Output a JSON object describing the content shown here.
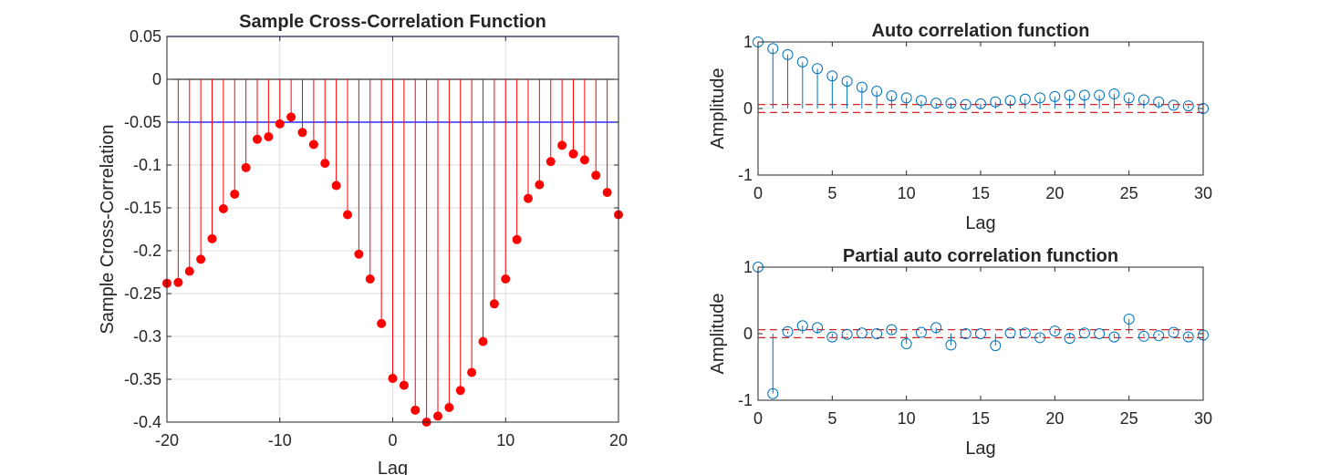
{
  "colors": {
    "ccf_stem": "#ff0000",
    "ccf_bound": "#0000ff",
    "acf_stem": "#0072bd",
    "bound_dash": "#d62728",
    "grid": "#dddddd",
    "axes": "#262626"
  },
  "charts": {
    "ccf": {
      "title": "Sample Cross-Correlation Function",
      "xlabel": "Lag",
      "ylabel": "Sample Cross-Correlation",
      "xticks": [
        "-20",
        "-10",
        "0",
        "10",
        "20"
      ],
      "yticks": [
        "0.05",
        "0",
        "-0.05",
        "-0.1",
        "-0.15",
        "-0.2",
        "-0.25",
        "-0.3",
        "-0.35",
        "-0.4"
      ]
    },
    "acf": {
      "title": "Auto correlation function",
      "xlabel": "Lag",
      "ylabel": "Amplitude",
      "xticks": [
        "0",
        "5",
        "10",
        "15",
        "20",
        "25",
        "30"
      ],
      "yticks": [
        "1",
        "0",
        "-1"
      ]
    },
    "pacf": {
      "title": "Partial auto correlation function",
      "xlabel": "Lag",
      "ylabel": "Amplitude",
      "xticks": [
        "0",
        "5",
        "10",
        "15",
        "20",
        "25",
        "30"
      ],
      "yticks": [
        "1",
        "0",
        "-1"
      ]
    }
  },
  "chart_data": [
    {
      "type": "stem",
      "title": "Sample Cross-Correlation Function",
      "xlabel": "Lag",
      "ylabel": "Sample Cross-Correlation",
      "xlim": [
        -20,
        20
      ],
      "ylim": [
        -0.4,
        0.05
      ],
      "grid": true,
      "marker": "filled-circle",
      "confidence_bounds": [
        0.05,
        -0.05
      ],
      "x": [
        -20,
        -19,
        -18,
        -17,
        -16,
        -15,
        -14,
        -13,
        -12,
        -11,
        -10,
        -9,
        -8,
        -7,
        -6,
        -5,
        -4,
        -3,
        -2,
        -1,
        0,
        1,
        2,
        3,
        4,
        5,
        6,
        7,
        8,
        9,
        10,
        11,
        12,
        13,
        14,
        15,
        16,
        17,
        18,
        19,
        20
      ],
      "values": [
        -0.238,
        -0.237,
        -0.224,
        -0.21,
        -0.186,
        -0.151,
        -0.134,
        -0.103,
        -0.07,
        -0.067,
        -0.052,
        -0.044,
        -0.062,
        -0.076,
        -0.098,
        -0.124,
        -0.158,
        -0.204,
        -0.233,
        -0.285,
        -0.349,
        -0.357,
        -0.386,
        -0.4,
        -0.393,
        -0.383,
        -0.363,
        -0.342,
        -0.306,
        -0.262,
        -0.233,
        -0.187,
        -0.139,
        -0.123,
        -0.096,
        -0.077,
        -0.087,
        -0.094,
        -0.112,
        -0.132,
        -0.158
      ]
    },
    {
      "type": "stem",
      "title": "Auto correlation function",
      "xlabel": "Lag",
      "ylabel": "Amplitude",
      "xlim": [
        0,
        30
      ],
      "ylim": [
        -1,
        1
      ],
      "grid": false,
      "marker": "open-circle",
      "confidence_bounds": [
        0.06,
        -0.06
      ],
      "x": [
        0,
        1,
        2,
        3,
        4,
        5,
        6,
        7,
        8,
        9,
        10,
        11,
        12,
        13,
        14,
        15,
        16,
        17,
        18,
        19,
        20,
        21,
        22,
        23,
        24,
        25,
        26,
        27,
        28,
        29,
        30
      ],
      "values": [
        1.0,
        0.9,
        0.81,
        0.7,
        0.6,
        0.49,
        0.41,
        0.32,
        0.26,
        0.19,
        0.16,
        0.12,
        0.08,
        0.08,
        0.06,
        0.07,
        0.1,
        0.12,
        0.14,
        0.16,
        0.18,
        0.2,
        0.2,
        0.2,
        0.22,
        0.16,
        0.13,
        0.1,
        0.05,
        0.04,
        0.0
      ]
    },
    {
      "type": "stem",
      "title": "Partial auto correlation function",
      "xlabel": "Lag",
      "ylabel": "Amplitude",
      "xlim": [
        0,
        30
      ],
      "ylim": [
        -1,
        1
      ],
      "grid": false,
      "marker": "open-circle",
      "confidence_bounds": [
        0.06,
        -0.06
      ],
      "x": [
        0,
        1,
        2,
        3,
        4,
        5,
        6,
        7,
        8,
        9,
        10,
        11,
        12,
        13,
        14,
        15,
        16,
        17,
        18,
        19,
        20,
        21,
        22,
        23,
        24,
        25,
        26,
        27,
        28,
        29,
        30
      ],
      "values": [
        1.0,
        -0.9,
        0.03,
        0.12,
        0.09,
        -0.05,
        -0.01,
        0.01,
        0.0,
        0.06,
        -0.15,
        0.02,
        0.09,
        -0.17,
        0.0,
        0.0,
        -0.18,
        0.01,
        0.01,
        -0.06,
        0.04,
        -0.07,
        0.01,
        0.0,
        -0.05,
        0.22,
        -0.04,
        -0.03,
        0.02,
        -0.05,
        -0.02
      ]
    }
  ]
}
